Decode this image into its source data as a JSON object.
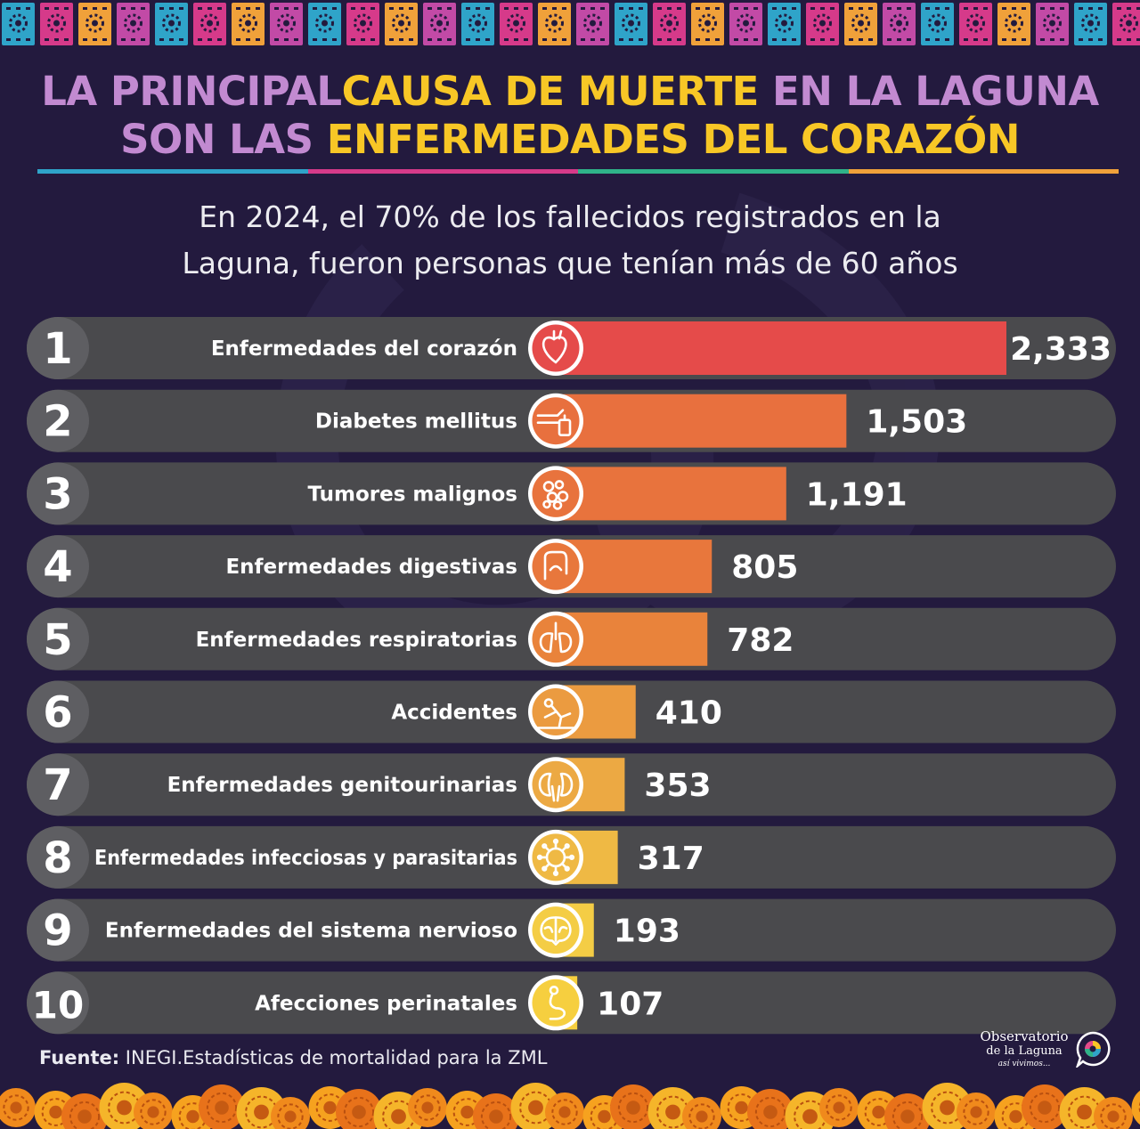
{
  "title": {
    "line1_a": "LA PRINCIPAL",
    "line1_b": "CAUSA DE MUERTE",
    "line1_c": "EN LA LAGUNA",
    "line2_a": "SON LAS",
    "line2_b": "ENFERMEDADES DEL CORAZÓN"
  },
  "subtitle": {
    "line1": "En 2024, el 70% de los fallecidos registrados en la",
    "line2": "Laguna, fueron personas que tenían más de 60 años"
  },
  "colors": {
    "background": "#231a3e",
    "title_purple": "#c28ad1",
    "title_yellow": "#f8c726",
    "row_bg": "#4a4a4d",
    "rank_circle": "#5e5e62",
    "underline": [
      "#2fa4c9",
      "#d63a8a",
      "#2fb389",
      "#f0a13a"
    ]
  },
  "chart_data": {
    "type": "bar",
    "orientation": "horizontal",
    "ranks": [
      "1",
      "2",
      "3",
      "4",
      "5",
      "6",
      "7",
      "8",
      "9",
      "10"
    ],
    "categories": [
      "Enfermedades del corazón",
      "Diabetes mellitus",
      "Tumores malignos",
      "Enfermedades digestivas",
      "Enfermedades respiratorias",
      "Accidentes",
      "Enfermedades genitourinarias",
      "Enfermedades infecciosas y parasitarias",
      "Enfermedades del sistema nervioso",
      "Afecciones perinatales"
    ],
    "values": [
      2333,
      1503,
      1191,
      805,
      782,
      410,
      353,
      317,
      193,
      107
    ],
    "value_labels": [
      "2,333",
      "1,503",
      "1,191",
      "805",
      "782",
      "410",
      "353",
      "317",
      "193",
      "107"
    ],
    "icons": [
      "heart-icon",
      "insulin-hand-icon",
      "tumor-cells-icon",
      "intestine-icon",
      "lungs-icon",
      "falling-person-icon",
      "kidneys-icon",
      "virus-icon",
      "brain-icon",
      "pregnancy-icon"
    ],
    "bar_colors": [
      "#e54b4a",
      "#e8703e",
      "#e8733d",
      "#e8773c",
      "#e9833b",
      "#eb9b40",
      "#eca943",
      "#efb944",
      "#f4cd45",
      "#f6cf3f"
    ],
    "xlim": [
      0,
      2333
    ]
  },
  "source": {
    "label": "Fuente:",
    "text": " INEGI.Estadísticas de mortalidad para la ZML"
  },
  "logo": {
    "line1": "Observatorio",
    "line2": "de la Laguna",
    "line3": "así vivimos..."
  }
}
